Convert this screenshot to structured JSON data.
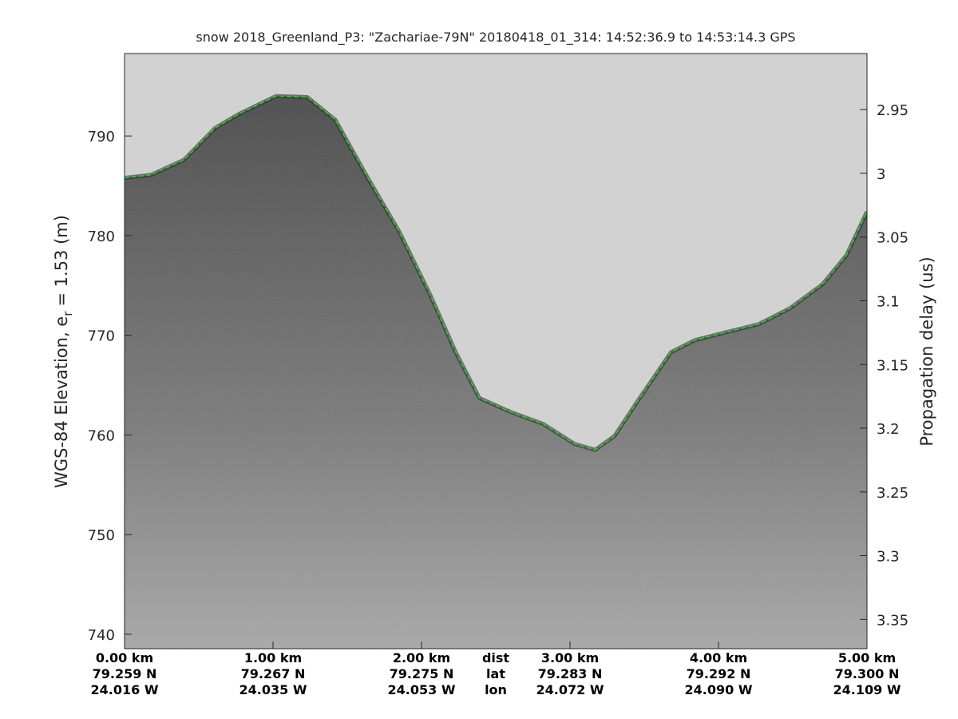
{
  "chart_data": {
    "type": "line",
    "title": "snow 2018_Greenland_P3: \"Zachariae-79N\"  20180418_01_314: 14:52:36.9 to 14:53:14.3 GPS",
    "ylabel": "WGS-84 Elevation, e",
    "ylabel_sub": "r",
    "ylabel_rest": "= 1.53 (m)",
    "y2label": "Propagation delay (us)",
    "xlim": [
      0,
      5
    ],
    "xticks": [
      {
        "value": 0,
        "label": "0.00 km"
      },
      {
        "value": 1,
        "label": "1.00 km"
      },
      {
        "value": 2,
        "label": "2.00 km"
      },
      {
        "value": 3,
        "label": "3.00 km"
      },
      {
        "value": 4,
        "label": "4.00 km"
      },
      {
        "value": 5,
        "label": "5.00 km"
      }
    ],
    "xtick_lat": [
      "79.259 N",
      "79.267 N",
      "79.275 N",
      "79.283 N",
      "79.292 N",
      "79.300 N"
    ],
    "xtick_lon": [
      "24.016 W",
      "24.035 W",
      "24.053 W",
      "24.072 W",
      "24.090 W",
      "24.109 W"
    ],
    "xtick_row_names": [
      "dist",
      "lat",
      "lon"
    ],
    "ylim": [
      738.55,
      798.27
    ],
    "yticks": [
      740,
      750,
      760,
      770,
      780,
      790
    ],
    "y2lim": [
      2.906,
      3.373
    ],
    "y2ticks": [
      2.95,
      3,
      3.05,
      3.1,
      3.15,
      3.2,
      3.25,
      3.3,
      3.35
    ],
    "y2_reversed": true,
    "x": [
      0,
      0.18,
      0.4,
      0.61,
      0.77,
      1.02,
      1.23,
      1.42,
      1.63,
      1.85,
      2.06,
      2.23,
      2.39,
      2.6,
      2.82,
      3.03,
      3.17,
      3.3,
      3.46,
      3.68,
      3.84,
      4.05,
      4.27,
      4.48,
      4.7,
      4.86,
      5.0
    ],
    "series": [
      {
        "color": "#22cc22",
        "line_style": "dashed",
        "values": [
          785.8,
          786.1,
          787.6,
          790.8,
          792.2,
          794.0,
          793.9,
          791.6,
          786.0,
          780.4,
          774.0,
          768.3,
          763.7,
          762.3,
          761.1,
          759.1,
          758.5,
          759.9,
          763.5,
          768.3,
          769.5,
          770.3,
          771.1,
          772.7,
          775.1,
          778.0,
          782.4
        ]
      }
    ]
  }
}
